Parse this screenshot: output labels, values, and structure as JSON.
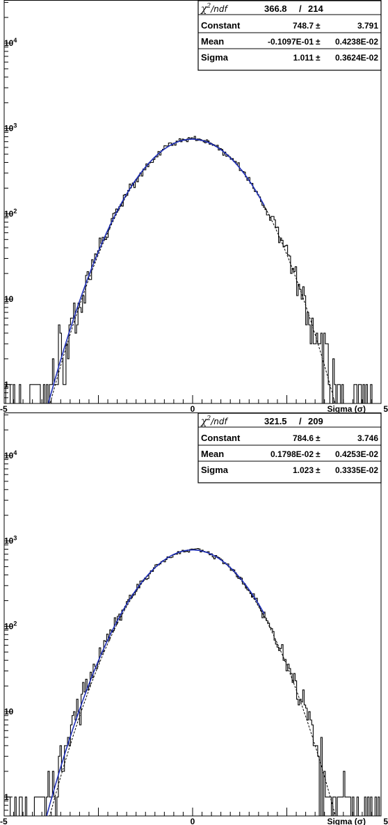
{
  "chart_data": [
    {
      "type": "line",
      "title": "",
      "xlabel": "Sigma (σ)",
      "ylabel": "",
      "xlim": [
        -5,
        5
      ],
      "ylim": [
        0.6,
        32000
      ],
      "y_scale": "log",
      "x_tick_labels": [
        "-5",
        "0",
        "5"
      ],
      "y_tick_labels": [
        {
          "value": 1,
          "base": "1",
          "exp": ""
        },
        {
          "value": 10,
          "base": "10",
          "exp": ""
        },
        {
          "value": 100,
          "base": "10",
          "exp": "2"
        },
        {
          "value": 1000,
          "base": "10",
          "exp": "3"
        },
        {
          "value": 10000,
          "base": "10",
          "exp": "4"
        }
      ],
      "stats": {
        "chi2_symbol": "χ",
        "chi2_sup": "2",
        "chi2_ndf_label": "/ndf",
        "chi2": "366.8",
        "slash": "/",
        "ndf": "214",
        "pm": "±",
        "rows": [
          {
            "name": "Constant",
            "value": "748.7",
            "error": "3.791"
          },
          {
            "name": "Mean",
            "value": "-0.1097E-01",
            "error": "0.4238E-02"
          },
          {
            "name": "Sigma",
            "value": "1.011",
            "error": "0.3624E-02"
          }
        ]
      },
      "fit": {
        "constant": 748.7,
        "mean": -0.01097,
        "sigma": 1.011,
        "fit_range": [
          -3.9,
          1.9
        ]
      },
      "reference": {
        "constant": 760,
        "mean": 0.0,
        "sigma": 1.0,
        "style": "dashed"
      },
      "histogram": {
        "type": "step",
        "x_range": [
          -5,
          5
        ],
        "n_bins": 250,
        "seed": 17
      }
    },
    {
      "type": "line",
      "title": "",
      "xlabel": "Sigma (σ)",
      "ylabel": "",
      "xlim": [
        -5,
        5
      ],
      "ylim": [
        0.6,
        32000
      ],
      "y_scale": "log",
      "x_tick_labels": [
        "-5",
        "0",
        "5"
      ],
      "y_tick_labels": [
        {
          "value": 1,
          "base": "1",
          "exp": ""
        },
        {
          "value": 10,
          "base": "10",
          "exp": ""
        },
        {
          "value": 100,
          "base": "10",
          "exp": "2"
        },
        {
          "value": 1000,
          "base": "10",
          "exp": "3"
        },
        {
          "value": 10000,
          "base": "10",
          "exp": "4"
        }
      ],
      "stats": {
        "chi2_symbol": "χ",
        "chi2_sup": "2",
        "chi2_ndf_label": "/ndf",
        "chi2": "321.5",
        "slash": "/",
        "ndf": "209",
        "pm": "±",
        "rows": [
          {
            "name": "Constant",
            "value": "784.6",
            "error": "3.746"
          },
          {
            "name": "Mean",
            "value": "0.1798E-02",
            "error": "0.4253E-02"
          },
          {
            "name": "Sigma",
            "value": "1.023",
            "error": "0.3335E-02"
          }
        ]
      },
      "fit": {
        "constant": 784.6,
        "mean": 0.001798,
        "sigma": 1.023,
        "fit_range": [
          -4.0,
          1.9
        ]
      },
      "reference": {
        "constant": 790,
        "mean": 0.0,
        "sigma": 1.0,
        "style": "dashed"
      },
      "histogram": {
        "type": "step",
        "x_range": [
          -5,
          5
        ],
        "n_bins": 250,
        "seed": 42
      }
    }
  ],
  "colors": {
    "axis": "#000000",
    "histogram": "#000000",
    "fit_line": "#1f2fb8",
    "reference_line": "#000000",
    "background": "#ffffff"
  }
}
